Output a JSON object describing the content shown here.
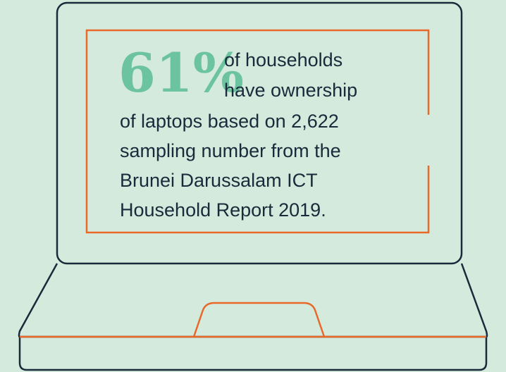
{
  "stat": "61%",
  "lines": [
    "of households",
    "have ownership",
    "of laptops based on 2,622",
    "sampling number from the",
    "Brunei Darussalam ICT",
    "Household Report 2019."
  ]
}
